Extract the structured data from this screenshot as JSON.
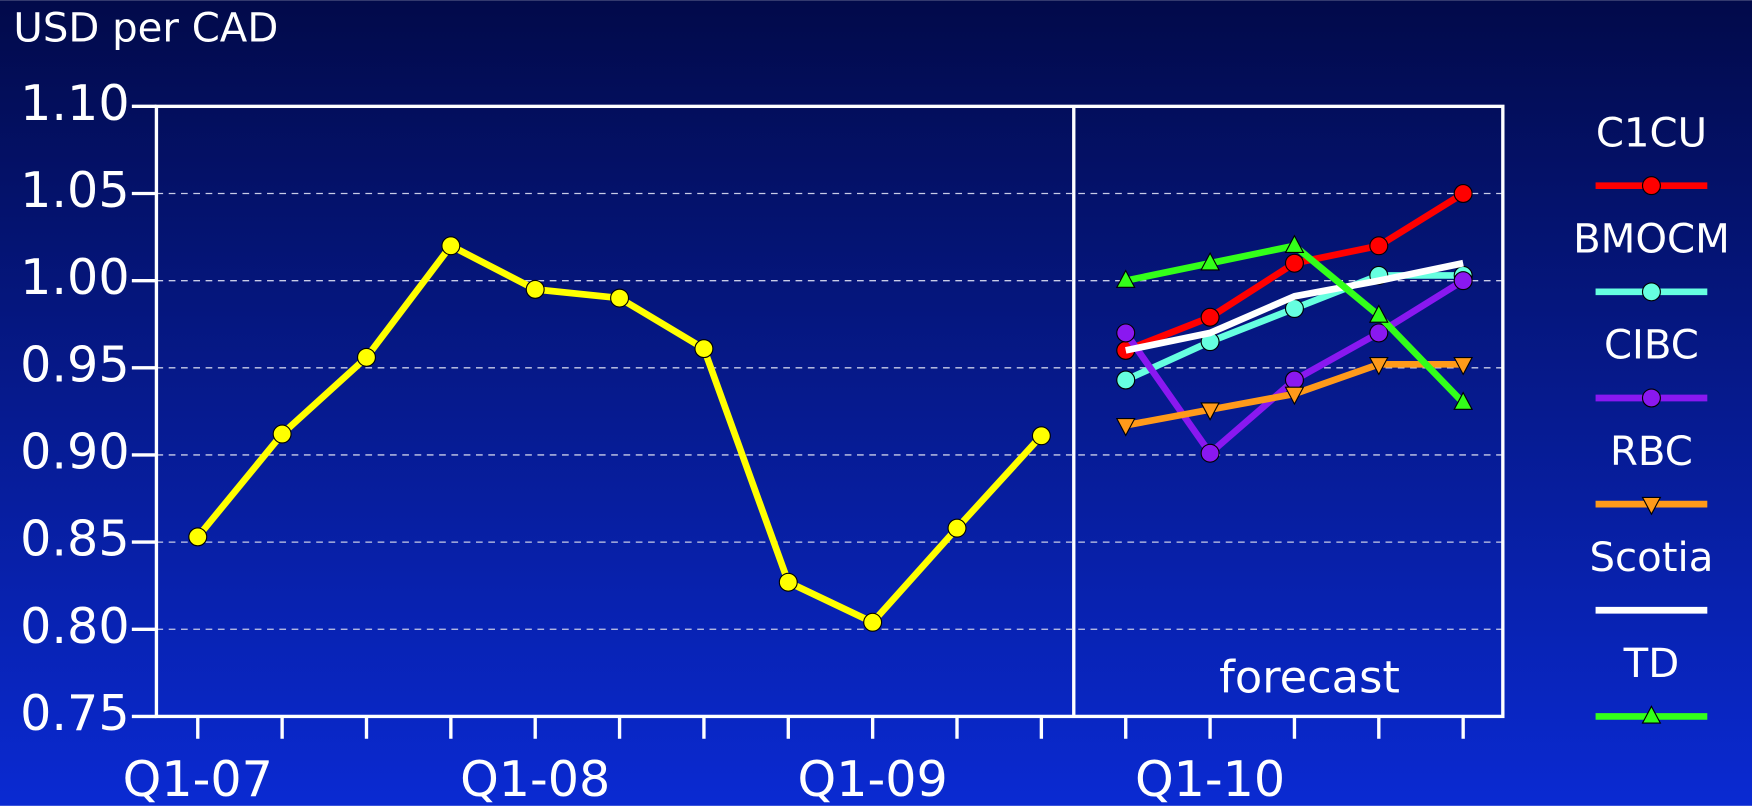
{
  "chart_data": {
    "type": "line",
    "title": "USD per CAD",
    "annotation": "forecast",
    "categories": [
      "Q1-07",
      null,
      null,
      null,
      "Q1-08",
      null,
      null,
      null,
      "Q1-09",
      null,
      null,
      null,
      "Q1-10",
      null,
      null,
      null
    ],
    "ylim": [
      0.75,
      1.1
    ],
    "yticks": [
      {
        "value": 0.75,
        "label": "0.75"
      },
      {
        "value": 0.8,
        "label": "0.80"
      },
      {
        "value": 0.85,
        "label": "0.85"
      },
      {
        "value": 0.9,
        "label": "0.90"
      },
      {
        "value": 0.95,
        "label": "0.95"
      },
      {
        "value": 1.0,
        "label": "1.00"
      },
      {
        "value": 1.05,
        "label": "1.05"
      },
      {
        "value": 1.1,
        "label": "1.10"
      }
    ],
    "grid": true,
    "series": [
      {
        "color": "#ffff00",
        "marker": "circle",
        "values": [
          0.853,
          0.912,
          0.956,
          1.02,
          0.995,
          0.99,
          0.961,
          0.827,
          0.804,
          0.858,
          0.911,
          null,
          null,
          null,
          null,
          null
        ]
      },
      {
        "name": "C1CU",
        "color": "#ff0000",
        "marker": "circle",
        "values": [
          null,
          null,
          null,
          null,
          null,
          null,
          null,
          null,
          null,
          null,
          null,
          0.96,
          0.979,
          1.01,
          1.02,
          1.05
        ]
      },
      {
        "name": "BMOCM",
        "color": "#66ffe0",
        "marker": "circle",
        "values": [
          null,
          null,
          null,
          null,
          null,
          null,
          null,
          null,
          null,
          null,
          null,
          0.943,
          0.965,
          0.984,
          1.003,
          1.003
        ]
      },
      {
        "name": "CIBC",
        "color": "#8a18f0",
        "marker": "circle",
        "values": [
          null,
          null,
          null,
          null,
          null,
          null,
          null,
          null,
          null,
          null,
          null,
          0.97,
          0.901,
          0.943,
          0.97,
          1.0
        ]
      },
      {
        "name": "RBC",
        "color": "#ff9a1a",
        "marker": "triangle-down",
        "values": [
          null,
          null,
          null,
          null,
          null,
          null,
          null,
          null,
          null,
          null,
          null,
          0.917,
          0.926,
          0.935,
          0.952,
          0.952
        ]
      },
      {
        "name": "Scotia",
        "color": "#ffffff",
        "marker": "none",
        "values": [
          null,
          null,
          null,
          null,
          null,
          null,
          null,
          null,
          null,
          null,
          null,
          0.96,
          0.97,
          0.991,
          1.0,
          1.01
        ]
      },
      {
        "name": "TD",
        "color": "#33ff1a",
        "marker": "triangle-up",
        "values": [
          null,
          null,
          null,
          null,
          null,
          null,
          null,
          null,
          null,
          null,
          null,
          1.0,
          1.01,
          1.02,
          0.98,
          0.93
        ]
      }
    ]
  }
}
